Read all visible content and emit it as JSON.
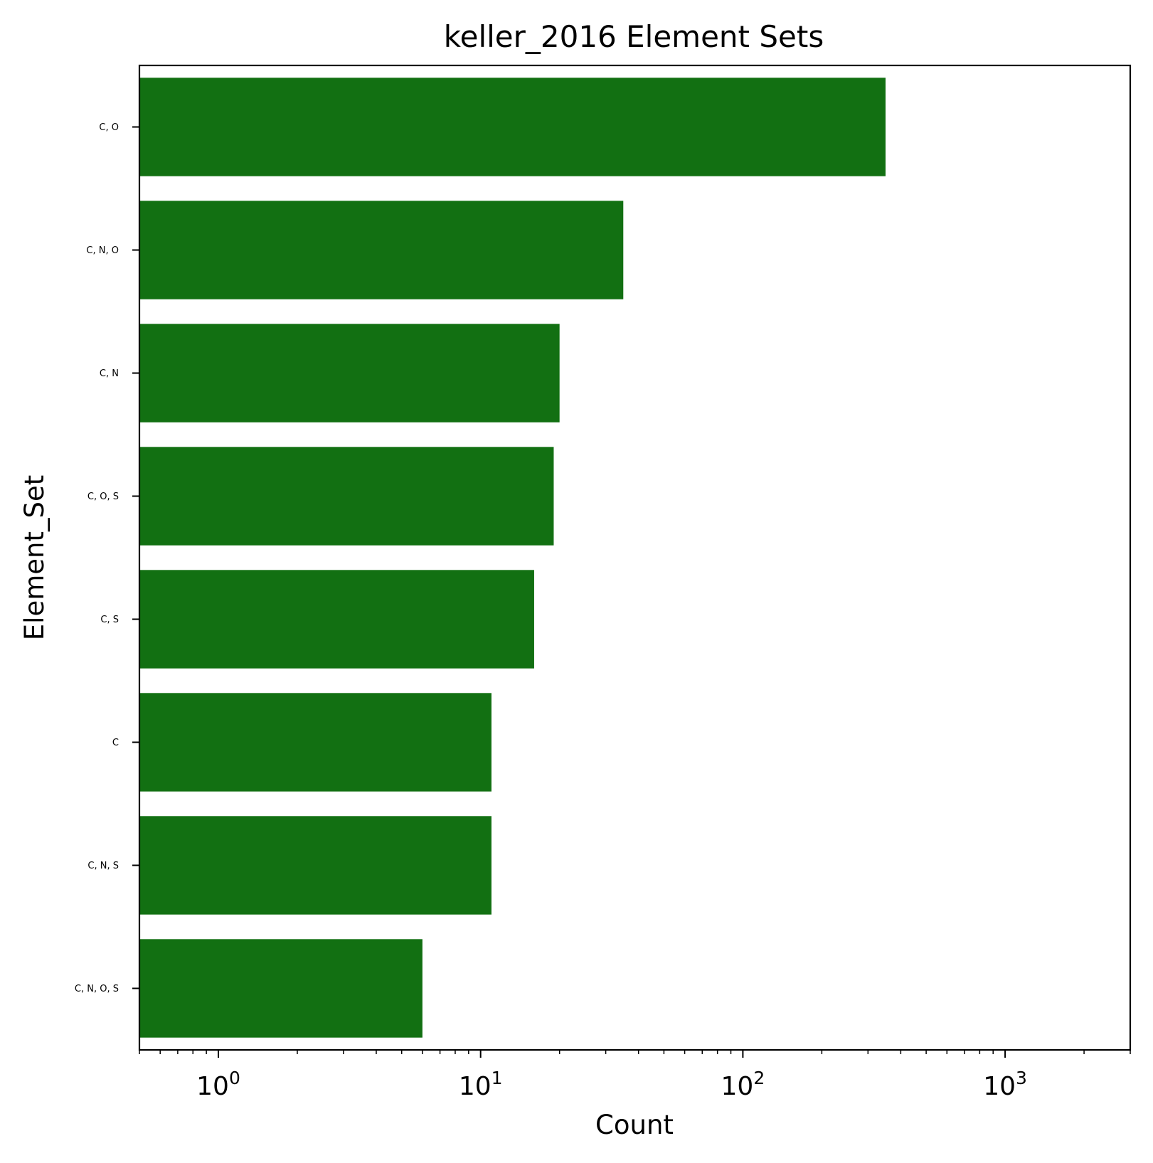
{
  "chart_data": {
    "type": "bar",
    "orientation": "horizontal",
    "title": "keller_2016 Element Sets",
    "xlabel": "Count",
    "ylabel": "Element_Set",
    "x_scale": "log",
    "xlim": [
      0.5,
      3000
    ],
    "x_major_ticks": [
      1,
      10,
      100,
      1000
    ],
    "x_tick_labels": [
      {
        "base": "10",
        "exp": "0"
      },
      {
        "base": "10",
        "exp": "1"
      },
      {
        "base": "10",
        "exp": "2"
      },
      {
        "base": "10",
        "exp": "3"
      }
    ],
    "categories": [
      "C, O",
      "C, N, O",
      "C, N",
      "C, O, S",
      "C, S",
      "C",
      "C, N, S",
      "C, N, O, S"
    ],
    "values": [
      350,
      35,
      20,
      19,
      16,
      11,
      11,
      6
    ],
    "bar_color": "#127012",
    "grid": false,
    "legend": "none"
  }
}
